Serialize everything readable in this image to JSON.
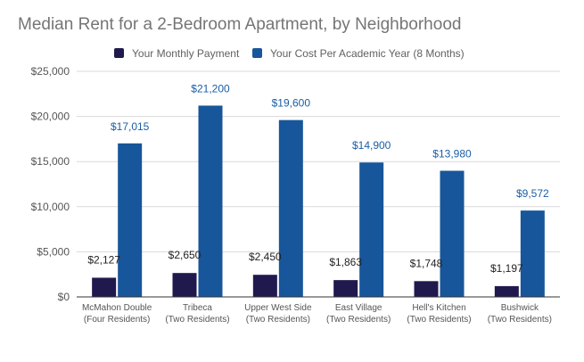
{
  "chart_data": {
    "type": "bar",
    "title": "Median Rent for a 2-Bedroom Apartment, by Neighborhood",
    "categories": [
      [
        "McMahon Double",
        "(Four Residents)"
      ],
      [
        "Tribeca",
        "(Two Residents)"
      ],
      [
        "Upper West Side",
        "(Two Residents)"
      ],
      [
        "East Village",
        "(Two Residents)"
      ],
      [
        "Hell's Kitchen",
        "(Two Residents)"
      ],
      [
        "Bushwick",
        "(Two Residents)"
      ]
    ],
    "series": [
      {
        "name": "Your Monthly Payment",
        "color": "#20194e",
        "label_color": "#222222",
        "values": [
          2127,
          2650,
          2450,
          1863,
          1748,
          1197
        ],
        "labels": [
          "$2,127",
          "$2,650",
          "$2,450",
          "$1,863",
          "$1,748",
          "$1,197"
        ]
      },
      {
        "name": "Your Cost Per Academic Year (8 Months)",
        "color": "#17569a",
        "label_color": "#1a5ea6",
        "values": [
          17015,
          21200,
          19600,
          14900,
          13980,
          9572
        ],
        "labels": [
          "$17,015",
          "$21,200",
          "$19,600",
          "$14,900",
          "$13,980",
          "$9,572"
        ]
      }
    ],
    "ylim": [
      0,
      25000
    ],
    "yticks": [
      0,
      5000,
      10000,
      15000,
      20000,
      25000
    ],
    "ytick_labels": [
      "$0",
      "$5,000",
      "$10,000",
      "$15,000",
      "$20,000",
      "$25,000"
    ],
    "xlabel": "",
    "ylabel": "",
    "grid": true,
    "legend_position": "top"
  }
}
